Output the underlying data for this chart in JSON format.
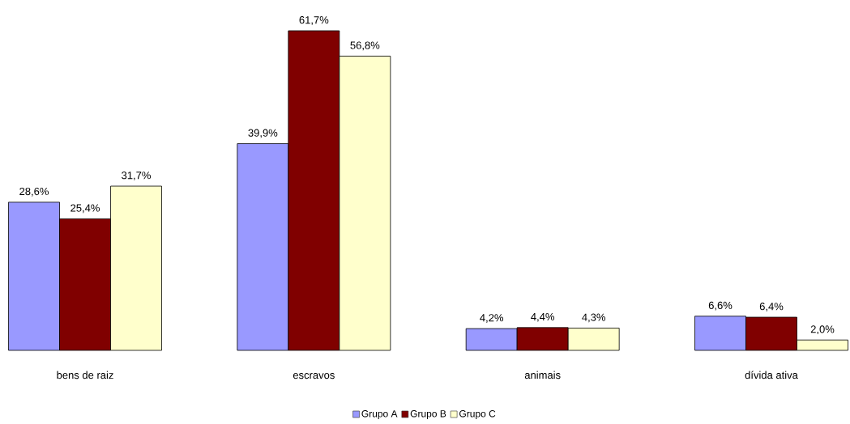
{
  "chart_data": {
    "type": "bar",
    "categories": [
      "bens de raiz",
      "escravos",
      "animais",
      "dívida ativa"
    ],
    "series": [
      {
        "name": "Grupo A",
        "color": "#9999ff",
        "values": [
          28.6,
          39.9,
          4.2,
          6.6
        ],
        "value_labels": [
          "28,6%",
          "39,9%",
          "4,2%",
          "6,6%"
        ]
      },
      {
        "name": "Grupo B",
        "color": "#800000",
        "values": [
          25.4,
          61.7,
          4.4,
          6.4
        ],
        "value_labels": [
          "25,4%",
          "61,7%",
          "4,4%",
          "6,4%"
        ]
      },
      {
        "name": "Grupo C",
        "color": "#ffffcc",
        "values": [
          31.7,
          56.8,
          4.3,
          2.0
        ],
        "value_labels": [
          "31,7%",
          "56,8%",
          "4,3%",
          "2,0%"
        ]
      }
    ],
    "legend": "bottom",
    "tick_labels": "x"
  }
}
